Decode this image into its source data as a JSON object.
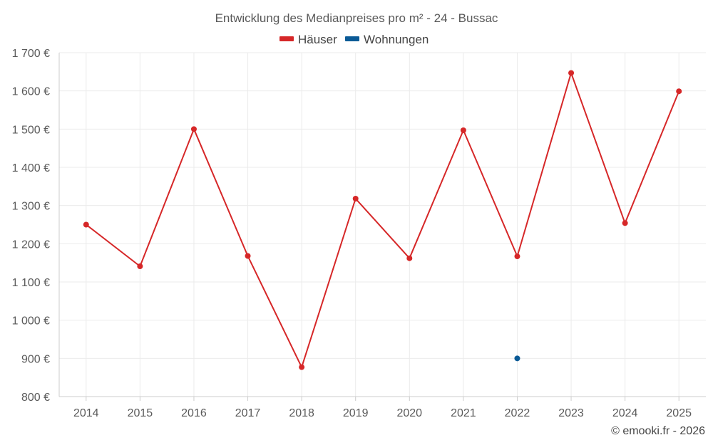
{
  "chart_data": {
    "type": "line",
    "title": "Entwicklung des Medianpreises pro m² - 24 - Bussac",
    "categories": [
      "2014",
      "2015",
      "2016",
      "2017",
      "2018",
      "2019",
      "2020",
      "2021",
      "2022",
      "2023",
      "2024",
      "2025"
    ],
    "y_ticks": [
      800,
      900,
      1000,
      1100,
      1200,
      1300,
      1400,
      1500,
      1600,
      1700
    ],
    "y_tick_labels": [
      "800 €",
      "900 €",
      "1 000 €",
      "1 100 €",
      "1 200 €",
      "1 300 €",
      "1 400 €",
      "1 500 €",
      "1 600 €",
      "1 700 €"
    ],
    "ylim": [
      800,
      1700
    ],
    "xlabel": "",
    "ylabel": "",
    "grid": true,
    "legend_position": "top-center",
    "series": [
      {
        "name": "Häuser",
        "color": "#d62728",
        "values": [
          1250,
          1141,
          1500,
          1168,
          877,
          1318,
          1162,
          1497,
          1167,
          1647,
          1254,
          1599
        ]
      },
      {
        "name": "Wohnungen",
        "color": "#0a5a96",
        "values": [
          null,
          null,
          null,
          null,
          null,
          null,
          null,
          null,
          900,
          null,
          null,
          null
        ]
      }
    ]
  },
  "credit": "© emooki.fr - 2026"
}
